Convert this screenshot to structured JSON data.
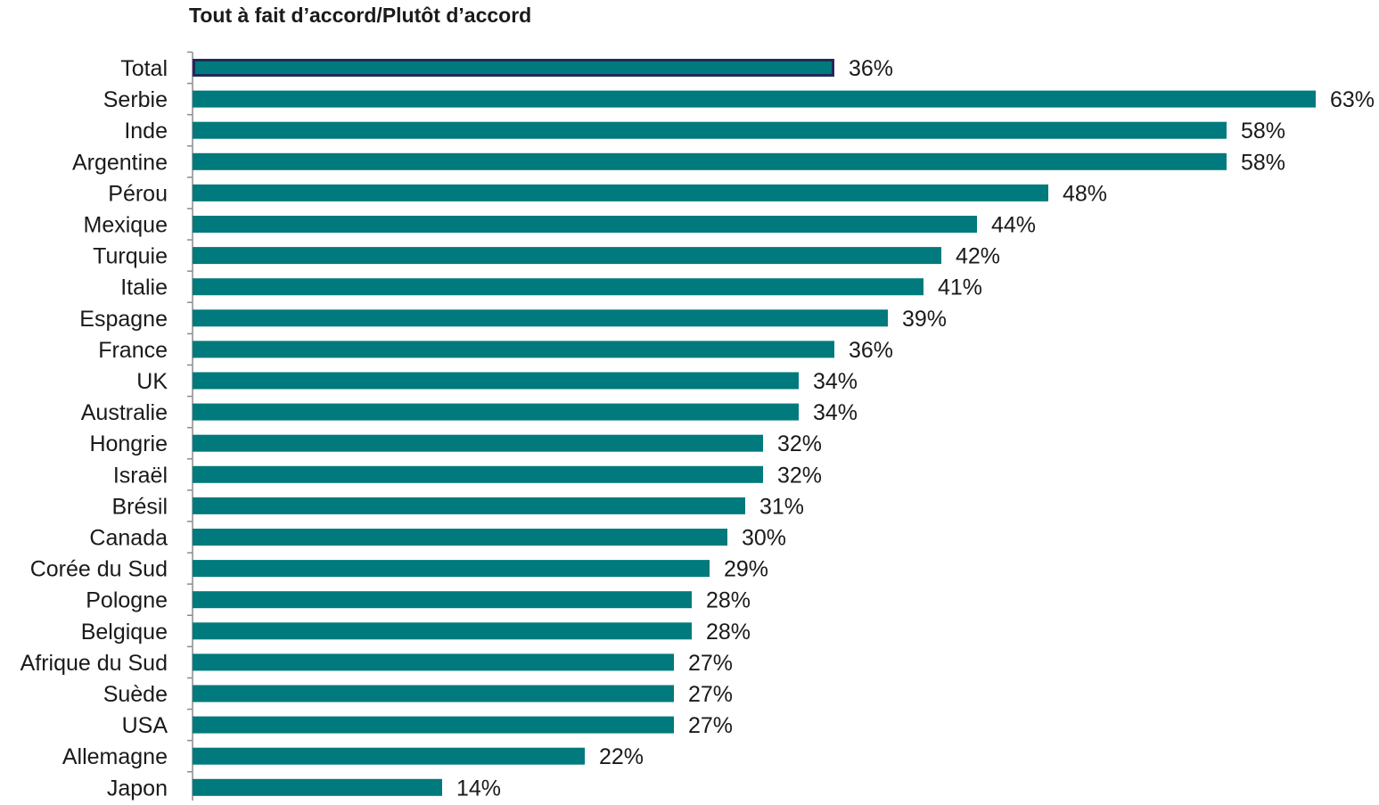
{
  "chart_data": {
    "type": "bar",
    "orientation": "horizontal",
    "title": "Tout à fait d’accord/Plutôt d’accord",
    "categories": [
      "Total",
      "Serbie",
      "Inde",
      "Argentine",
      "Pérou",
      "Mexique",
      "Turquie",
      "Italie",
      "Espagne",
      "France",
      "UK",
      "Australie",
      "Hongrie",
      "Israël",
      "Brésil",
      "Canada",
      "Corée du Sud",
      "Pologne",
      "Belgique",
      "Afrique du Sud",
      "Suède",
      "USA",
      "Allemagne",
      "Japon"
    ],
    "values": [
      36,
      63,
      58,
      58,
      48,
      44,
      42,
      41,
      39,
      36,
      34,
      34,
      32,
      32,
      31,
      30,
      29,
      28,
      28,
      27,
      27,
      27,
      22,
      14
    ],
    "data_labels": [
      "36%",
      "63%",
      "58%",
      "58%",
      "48%",
      "44%",
      "42%",
      "41%",
      "39%",
      "36%",
      "34%",
      "34%",
      "32%",
      "32%",
      "31%",
      "30%",
      "29%",
      "28%",
      "28%",
      "27%",
      "27%",
      "27%",
      "22%",
      "14%"
    ],
    "xlim": [
      0,
      63
    ],
    "grid": false,
    "legend": "none",
    "colors": {
      "bar": "#007A7C",
      "highlight_border": "#1F2A5C",
      "axis": "#8C8C8C",
      "text": "#1a1a1a"
    },
    "highlighted_category": "Total"
  }
}
